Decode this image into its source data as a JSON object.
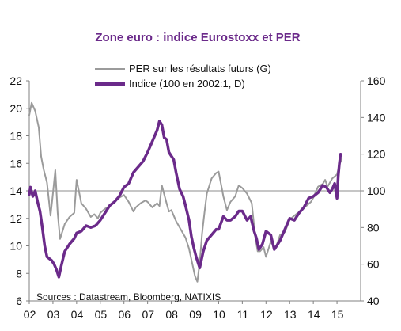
{
  "chart_data": {
    "type": "line",
    "title": "Zone euro : indice Eurostoxx et PER",
    "source": "Sources : Datastream, Bloomberg, NATIXIS",
    "x_ticks": [
      "02",
      "03",
      "04",
      "05",
      "06",
      "07",
      "08",
      "09",
      "10",
      "11",
      "12",
      "13",
      "14",
      "15"
    ],
    "xlim": [
      2002.0,
      2016.0
    ],
    "left_axis": {
      "ylim": [
        6,
        22
      ],
      "ticks": [
        "6",
        "8",
        "10",
        "12",
        "14",
        "16",
        "18",
        "20",
        "22"
      ]
    },
    "right_axis": {
      "ylim": [
        40,
        160
      ],
      "ticks": [
        "40",
        "60",
        "80",
        "100",
        "120",
        "140",
        "160"
      ]
    },
    "reference_line": {
      "axis": "right",
      "value": 100
    },
    "grid": false,
    "legend_position": "top-center",
    "series": [
      {
        "name": "PER sur les résultats futurs (G)",
        "axis": "left",
        "color": "#9b9b9b",
        "x": [
          2002.0,
          2002.1,
          2002.25,
          2002.4,
          2002.5,
          2002.6,
          2002.75,
          2002.9,
          2003.0,
          2003.1,
          2003.2,
          2003.3,
          2003.5,
          2003.7,
          2003.9,
          2004.0,
          2004.2,
          2004.4,
          2004.6,
          2004.75,
          2004.9,
          2005.0,
          2005.2,
          2005.4,
          2005.6,
          2005.8,
          2006.0,
          2006.2,
          2006.4,
          2006.5,
          2006.7,
          2006.9,
          2007.0,
          2007.2,
          2007.4,
          2007.5,
          2007.6,
          2007.8,
          2007.9,
          2008.0,
          2008.2,
          2008.4,
          2008.5,
          2008.6,
          2008.75,
          2008.9,
          2009.0,
          2009.1,
          2009.2,
          2009.3,
          2009.4,
          2009.5,
          2009.7,
          2009.9,
          2010.0,
          2010.2,
          2010.35,
          2010.5,
          2010.7,
          2010.85,
          2011.0,
          2011.2,
          2011.4,
          2011.55,
          2011.65,
          2011.75,
          2011.9,
          2012.0,
          2012.2,
          2012.4,
          2012.6,
          2012.8,
          2013.0,
          2013.2,
          2013.5,
          2013.7,
          2013.9,
          2014.0,
          2014.2,
          2014.4,
          2014.5,
          2014.6,
          2014.8,
          2015.0,
          2015.1,
          2015.2
        ],
        "y": [
          19.5,
          20.4,
          19.8,
          18.6,
          16.5,
          15.6,
          14.6,
          12.2,
          13.8,
          15.5,
          12.4,
          10.5,
          11.6,
          12.1,
          12.4,
          14.8,
          13.1,
          12.7,
          12.1,
          12.3,
          12.0,
          12.4,
          12.7,
          12.9,
          13.2,
          13.5,
          13.7,
          13.2,
          12.5,
          12.8,
          13.1,
          13.3,
          13.2,
          12.8,
          13.1,
          12.9,
          14.4,
          13.1,
          12.5,
          12.6,
          11.8,
          11.2,
          10.9,
          10.6,
          9.8,
          8.6,
          7.8,
          7.4,
          8.8,
          10.9,
          12.4,
          13.8,
          14.9,
          15.3,
          15.4,
          13.6,
          12.6,
          13.2,
          13.6,
          14.4,
          14.2,
          13.8,
          13.1,
          10.6,
          9.6,
          9.6,
          9.9,
          9.2,
          10.3,
          9.8,
          10.8,
          11.0,
          11.9,
          12.2,
          12.6,
          12.9,
          13.2,
          13.5,
          14.3,
          14.5,
          14.8,
          14.3,
          14.9,
          15.2,
          15.9,
          16.3
        ]
      },
      {
        "name": "Indice (100 en 2002:1, D)",
        "axis": "right",
        "color": "#6b2a8a",
        "x": [
          2002.0,
          2002.05,
          2002.15,
          2002.25,
          2002.35,
          2002.45,
          2002.55,
          2002.65,
          2002.75,
          2002.85,
          2002.95,
          2003.05,
          2003.15,
          2003.25,
          2003.35,
          2003.5,
          2003.7,
          2003.9,
          2004.0,
          2004.2,
          2004.4,
          2004.6,
          2004.8,
          2005.0,
          2005.2,
          2005.4,
          2005.6,
          2005.8,
          2006.0,
          2006.2,
          2006.4,
          2006.6,
          2006.8,
          2007.0,
          2007.2,
          2007.4,
          2007.5,
          2007.6,
          2007.7,
          2007.8,
          2007.9,
          2008.0,
          2008.1,
          2008.2,
          2008.35,
          2008.5,
          2008.6,
          2008.75,
          2008.85,
          2008.95,
          2009.05,
          2009.2,
          2009.35,
          2009.5,
          2009.7,
          2009.9,
          2010.0,
          2010.2,
          2010.35,
          2010.5,
          2010.7,
          2010.85,
          2011.0,
          2011.2,
          2011.35,
          2011.5,
          2011.6,
          2011.7,
          2011.85,
          2012.0,
          2012.2,
          2012.35,
          2012.45,
          2012.6,
          2012.8,
          2013.0,
          2013.2,
          2013.4,
          2013.6,
          2013.8,
          2014.0,
          2014.2,
          2014.4,
          2014.55,
          2014.7,
          2014.8,
          2014.9,
          2015.0,
          2015.05,
          2015.1,
          2015.15
        ],
        "y": [
          98,
          102,
          97,
          100,
          94,
          89,
          80,
          70,
          64,
          63,
          62,
          60,
          57,
          53,
          59,
          67,
          71,
          74,
          77,
          78,
          81,
          80,
          81,
          84,
          88,
          92,
          94,
          97,
          102,
          104,
          110,
          113,
          116,
          121,
          127,
          133,
          138,
          136,
          129,
          128,
          121,
          119,
          117,
          110,
          101,
          97,
          92,
          84,
          75,
          69,
          64,
          58,
          67,
          73,
          76,
          79,
          79,
          86,
          84,
          84,
          86,
          89,
          89,
          84,
          86,
          78,
          74,
          68,
          71,
          78,
          76,
          68,
          70,
          73,
          79,
          85,
          84,
          88,
          91,
          96,
          97,
          99,
          103,
          102,
          99,
          101,
          104,
          96,
          108,
          115,
          120
        ]
      }
    ]
  }
}
